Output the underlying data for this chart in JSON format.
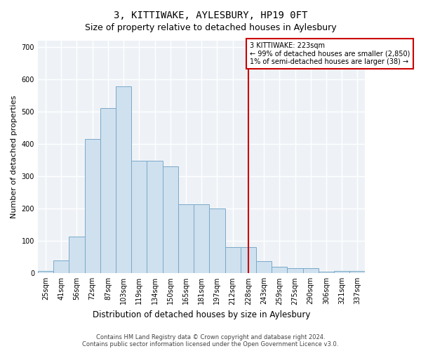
{
  "title": "3, KITTIWAKE, AYLESBURY, HP19 0FT",
  "subtitle": "Size of property relative to detached houses in Aylesbury",
  "xlabel": "Distribution of detached houses by size in Aylesbury",
  "ylabel": "Number of detached properties",
  "categories": [
    "25sqm",
    "41sqm",
    "56sqm",
    "72sqm",
    "87sqm",
    "103sqm",
    "119sqm",
    "134sqm",
    "150sqm",
    "165sqm",
    "181sqm",
    "197sqm",
    "212sqm",
    "228sqm",
    "243sqm",
    "259sqm",
    "275sqm",
    "290sqm",
    "306sqm",
    "321sqm",
    "337sqm"
  ],
  "values": [
    8,
    40,
    113,
    415,
    510,
    578,
    347,
    347,
    330,
    213,
    213,
    200,
    80,
    80,
    38,
    20,
    15,
    15,
    5,
    8,
    8
  ],
  "bar_color": "#cfe0ef",
  "bar_edge_color": "#7aaac8",
  "vline_x": 13.0,
  "vline_color": "#cc0000",
  "annotation_line1": "3 KITTIWAKE: 223sqm",
  "annotation_line2": "← 99% of detached houses are smaller (2,850)",
  "annotation_line3": "1% of semi-detached houses are larger (38) →",
  "annotation_box_color": "#cc0000",
  "annotation_bg": "#ffffff",
  "footer1": "Contains HM Land Registry data © Crown copyright and database right 2024.",
  "footer2": "Contains public sector information licensed under the Open Government Licence v3.0.",
  "ylim": [
    0,
    720
  ],
  "yticks": [
    0,
    100,
    200,
    300,
    400,
    500,
    600,
    700
  ],
  "plot_bg_color": "#eef2f7",
  "fig_bg_color": "#ffffff",
  "grid_color": "#ffffff",
  "title_fontsize": 10,
  "subtitle_fontsize": 9,
  "xlabel_fontsize": 8.5,
  "ylabel_fontsize": 8,
  "tick_fontsize": 7,
  "footer_fontsize": 6
}
